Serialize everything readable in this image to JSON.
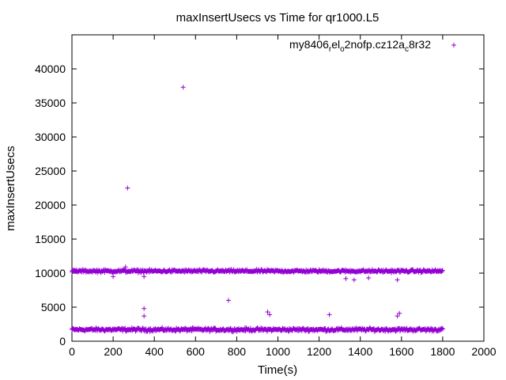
{
  "chart_data": {
    "type": "scatter",
    "title": "maxInsertUsecs vs Time for qr1000.L5",
    "xlabel": "Time(s)",
    "ylabel": "maxInsertUsecs",
    "xlim": [
      0,
      2000
    ],
    "ylim": [
      0,
      45000
    ],
    "xticks": [
      0,
      200,
      400,
      600,
      800,
      1000,
      1200,
      1400,
      1600,
      1800,
      2000
    ],
    "yticks": [
      0,
      5000,
      10000,
      15000,
      20000,
      25000,
      30000,
      35000,
      40000
    ],
    "grid": false,
    "legend_position": "top-right",
    "color": "#9400d3",
    "marker": "+",
    "series": [
      {
        "name": "my8406_rel_o2nofp.cz12a_c8r32",
        "name_parts": [
          {
            "text": "my8406",
            "sub": false
          },
          {
            "text": "r",
            "sub": true
          },
          {
            "text": "el",
            "sub": false
          },
          {
            "text": "o",
            "sub": true
          },
          {
            "text": "2nofp.cz12a",
            "sub": false
          },
          {
            "text": "c",
            "sub": true
          },
          {
            "text": "8r32",
            "sub": false
          }
        ],
        "bands": [
          {
            "x_start": 0,
            "x_end": 1800,
            "center": 1700,
            "spread": 350
          },
          {
            "x_start": 0,
            "x_end": 1800,
            "center": 10300,
            "spread": 300
          }
        ],
        "outliers": [
          {
            "x": 270,
            "y": 22500
          },
          {
            "x": 540,
            "y": 37300
          },
          {
            "x": 350,
            "y": 4800
          },
          {
            "x": 350,
            "y": 3700
          },
          {
            "x": 760,
            "y": 6000
          },
          {
            "x": 950,
            "y": 4300
          },
          {
            "x": 960,
            "y": 3900
          },
          {
            "x": 1250,
            "y": 3900
          },
          {
            "x": 1580,
            "y": 3700
          },
          {
            "x": 1590,
            "y": 4100
          },
          {
            "x": 200,
            "y": 9500
          },
          {
            "x": 350,
            "y": 9500
          },
          {
            "x": 1330,
            "y": 9200
          },
          {
            "x": 1370,
            "y": 9000
          },
          {
            "x": 1440,
            "y": 9300
          },
          {
            "x": 1580,
            "y": 9000
          },
          {
            "x": 260,
            "y": 10900
          }
        ]
      }
    ]
  }
}
